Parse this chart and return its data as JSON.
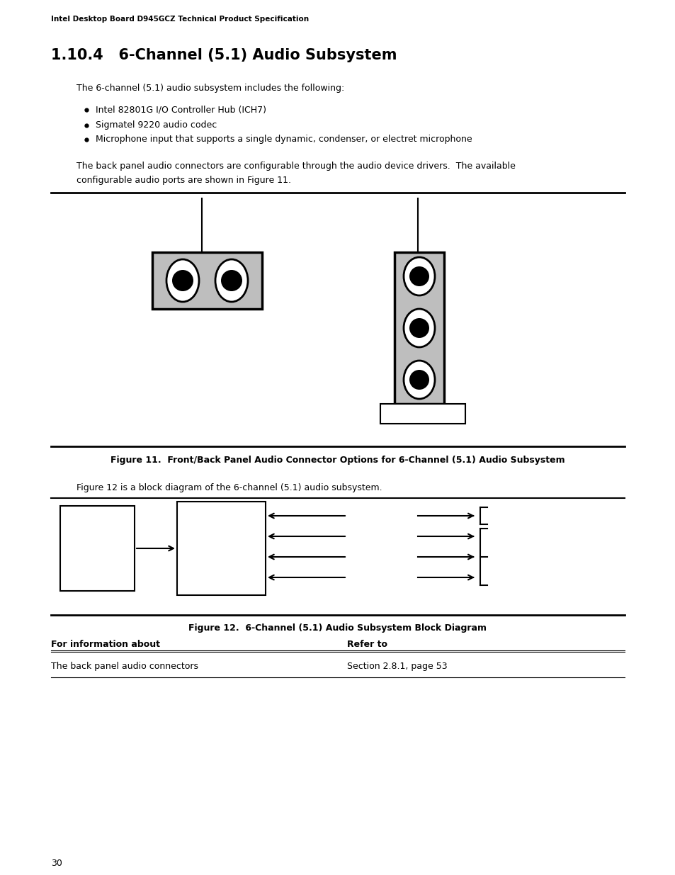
{
  "header_text": "Intel Desktop Board D945GCZ Technical Product Specification",
  "section_title": "1.10.4   6-Channel (5.1) Audio Subsystem",
  "para1": "The 6-channel (5.1) audio subsystem includes the following:",
  "bullets": [
    "Intel 82801G I/O Controller Hub (ICH7)",
    "Sigmatel 9220 audio codec",
    "Microphone input that supports a single dynamic, condenser, or electret microphone"
  ],
  "para2a": "The back panel audio connectors are configurable through the audio device drivers.  The available",
  "para2b": "configurable audio ports are shown in Figure 11.",
  "fig11_caption": "Figure 11.  Front/Back Panel Audio Connector Options for 6-Channel (5.1) Audio Subsystem",
  "fig12_intro": "Figure 12 is a block diagram of the 6-channel (5.1) audio subsystem.",
  "fig12_caption": "Figure 12.  6-Channel (5.1) Audio Subsystem Block Diagram",
  "table_header_left": "For information about",
  "table_header_right": "Refer to",
  "table_row_left": "The back panel audio connectors",
  "table_row_right": "Section 2.8.1, page 53",
  "page_number": "30",
  "bg_color": "#ffffff",
  "text_color": "#000000",
  "gray_color": "#bebebe"
}
